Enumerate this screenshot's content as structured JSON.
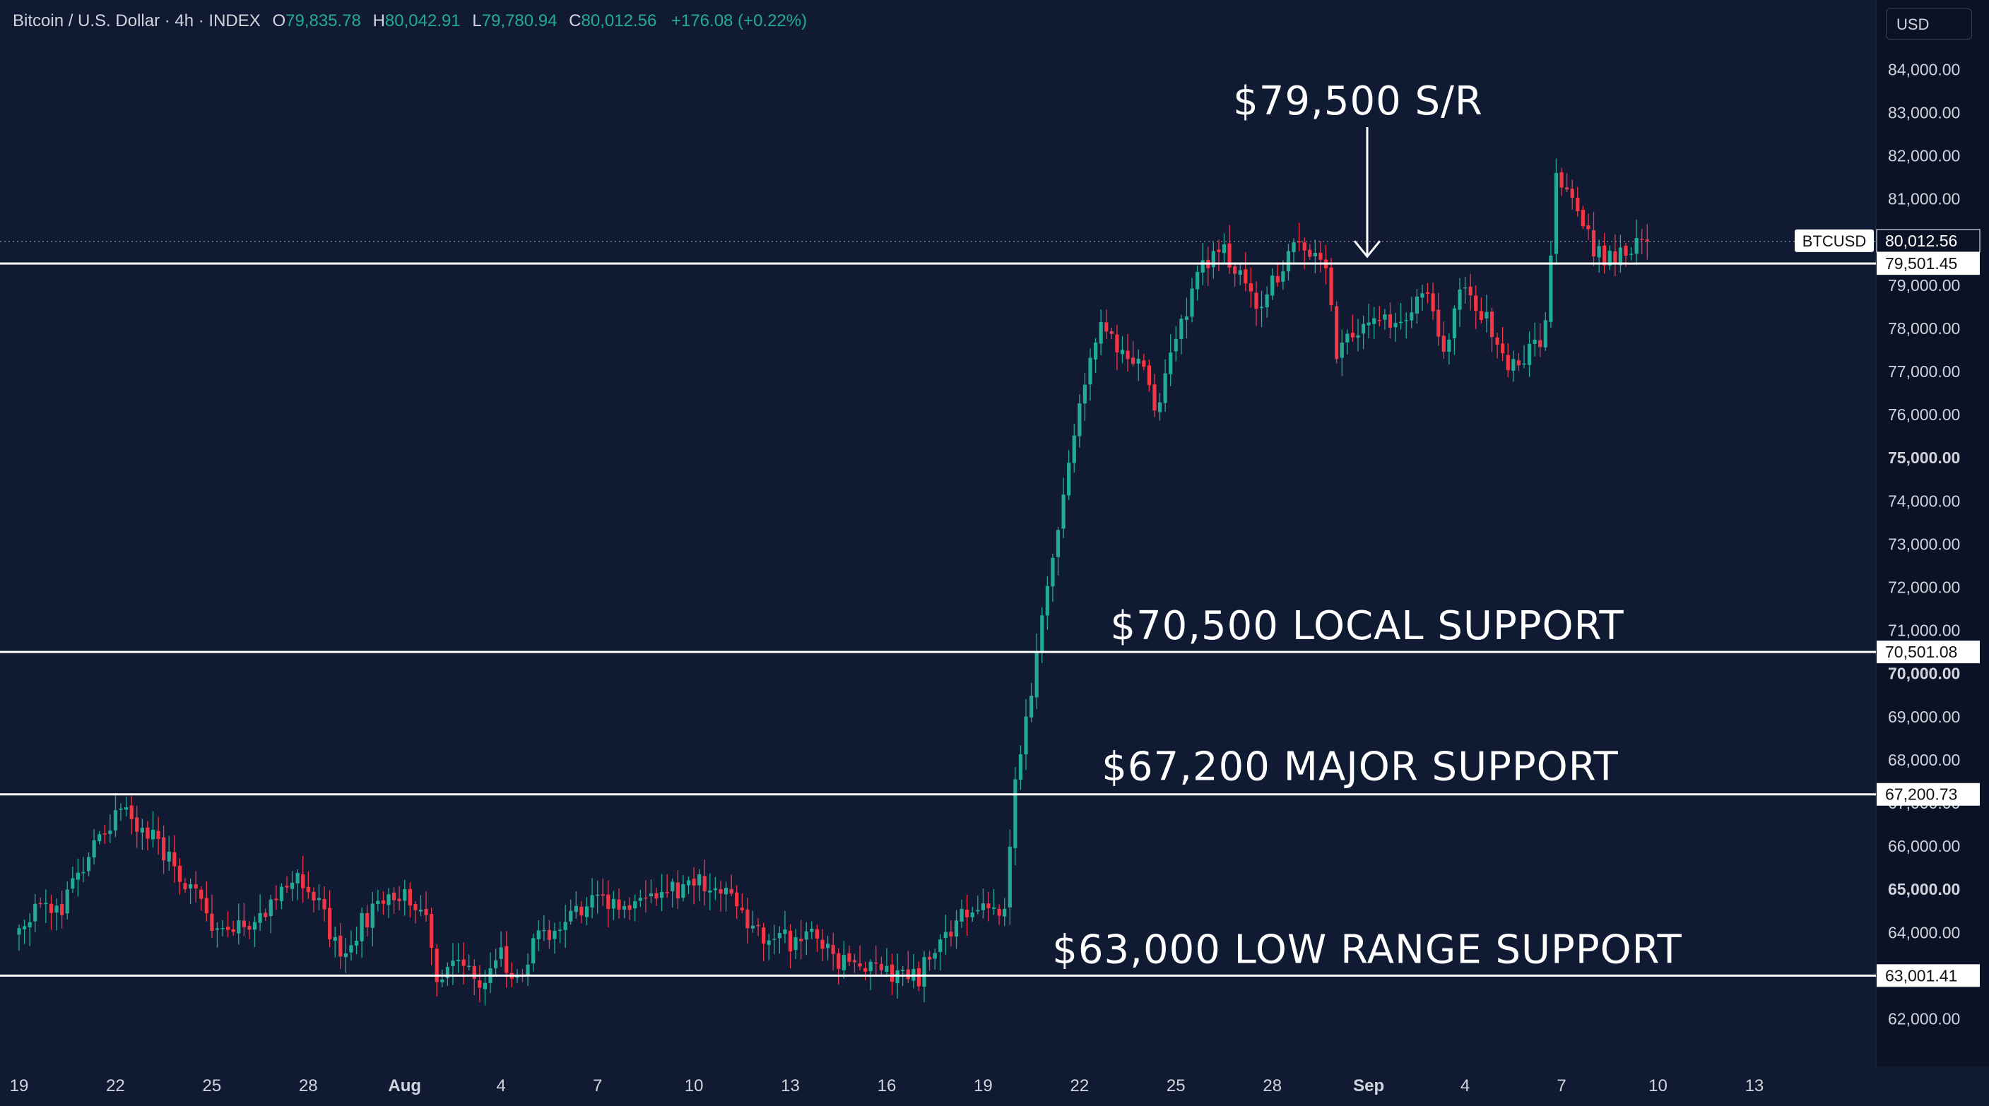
{
  "header": {
    "title": "Bitcoin / U.S. Dollar · 4h · INDEX",
    "o_label": "O",
    "o_value": "79,835.78",
    "h_label": "H",
    "h_value": "80,042.91",
    "l_label": "L",
    "l_value": "79,780.94",
    "c_label": "C",
    "c_value": "80,012.56",
    "change": "+176.08 (+0.22%)"
  },
  "currency_button": "USD",
  "colors": {
    "background": "#111a33",
    "up": "#22ab94",
    "down": "#f23645",
    "text": "#d1d4dc",
    "line": "#ffffff"
  },
  "chart_data": {
    "type": "candlestick",
    "title": "Bitcoin / U.S. Dollar · 4h · INDEX",
    "ylim": [
      61300,
      84900
    ],
    "y_ticks": [
      62000,
      63000,
      64000,
      65000,
      66000,
      67000,
      68000,
      69000,
      70000,
      71000,
      72000,
      73000,
      74000,
      75000,
      76000,
      77000,
      78000,
      79000,
      80000,
      81000,
      82000,
      83000,
      84000
    ],
    "y_tick_labels": [
      "62,000.00",
      "63,000.00",
      "64,000.00",
      "65,000.00",
      "66,000.00",
      "67,000.00",
      "68,000.00",
      "69,000.00",
      "70,000.00",
      "71,000.00",
      "72,000.00",
      "73,000.00",
      "74,000.00",
      "75,000.00",
      "76,000.00",
      "77,000.00",
      "78,000.00",
      "79,000.00",
      "80,000.00",
      "81,000.00",
      "82,000.00",
      "83,000.00",
      "84,000.00"
    ],
    "x_ticks": [
      "19",
      "22",
      "25",
      "28",
      "Aug",
      "4",
      "7",
      "10",
      "13",
      "16",
      "19",
      "22",
      "25",
      "28",
      "Sep",
      "4",
      "7",
      "10",
      "13"
    ],
    "x_tick_index": [
      0,
      18,
      36,
      54,
      72,
      90,
      108,
      126,
      144,
      162,
      180,
      198,
      216,
      234,
      252,
      270,
      288,
      306,
      324
    ],
    "bold_x_ticks": [
      "Aug",
      "Sep"
    ],
    "anchors": [
      [
        0,
        64100
      ],
      [
        4,
        64800
      ],
      [
        8,
        64600
      ],
      [
        12,
        65400
      ],
      [
        16,
        66500
      ],
      [
        20,
        66700
      ],
      [
        24,
        66300
      ],
      [
        28,
        65700
      ],
      [
        32,
        65100
      ],
      [
        36,
        64100
      ],
      [
        40,
        63900
      ],
      [
        44,
        64400
      ],
      [
        48,
        64700
      ],
      [
        52,
        65500
      ],
      [
        56,
        64600
      ],
      [
        60,
        63400
      ],
      [
        64,
        64200
      ],
      [
        68,
        64700
      ],
      [
        72,
        65000
      ],
      [
        76,
        64300
      ],
      [
        78,
        63000
      ],
      [
        82,
        63200
      ],
      [
        86,
        62900
      ],
      [
        90,
        63400
      ],
      [
        92,
        62800
      ],
      [
        96,
        63700
      ],
      [
        100,
        64100
      ],
      [
        104,
        64400
      ],
      [
        108,
        65000
      ],
      [
        112,
        64600
      ],
      [
        116,
        64700
      ],
      [
        120,
        65000
      ],
      [
        124,
        64900
      ],
      [
        128,
        65200
      ],
      [
        132,
        64800
      ],
      [
        136,
        64200
      ],
      [
        140,
        63900
      ],
      [
        144,
        63800
      ],
      [
        148,
        64000
      ],
      [
        152,
        63500
      ],
      [
        156,
        63100
      ],
      [
        160,
        63050
      ],
      [
        164,
        63100
      ],
      [
        168,
        63000
      ],
      [
        172,
        63800
      ],
      [
        176,
        64500
      ],
      [
        180,
        64800
      ],
      [
        184,
        64300
      ],
      [
        186,
        67500
      ],
      [
        188,
        68900
      ],
      [
        190,
        70300
      ],
      [
        192,
        72000
      ],
      [
        194,
        73200
      ],
      [
        196,
        75000
      ],
      [
        198,
        76400
      ],
      [
        200,
        77400
      ],
      [
        202,
        78000
      ],
      [
        206,
        77400
      ],
      [
        210,
        77100
      ],
      [
        212,
        76000
      ],
      [
        216,
        77600
      ],
      [
        220,
        79300
      ],
      [
        224,
        80000
      ],
      [
        228,
        79100
      ],
      [
        232,
        78500
      ],
      [
        236,
        79500
      ],
      [
        240,
        80000
      ],
      [
        244,
        79200
      ],
      [
        246,
        77500
      ],
      [
        250,
        77800
      ],
      [
        254,
        78200
      ],
      [
        258,
        78100
      ],
      [
        262,
        79000
      ],
      [
        266,
        77600
      ],
      [
        270,
        79000
      ],
      [
        274,
        78200
      ],
      [
        278,
        77100
      ],
      [
        282,
        77400
      ],
      [
        285,
        78000
      ],
      [
        287,
        81700
      ],
      [
        289,
        81000
      ],
      [
        292,
        80600
      ],
      [
        294,
        79700
      ],
      [
        298,
        79700
      ],
      [
        300,
        79800
      ],
      [
        304,
        80012.56
      ]
    ],
    "series": [
      {
        "name": "BTCUSD",
        "last_value": 80012.56,
        "label": "BTCUSD",
        "value_label": "80,012.56"
      }
    ],
    "horizontal_lines": [
      {
        "value": 79501.45,
        "value_label": "79,501.45",
        "annotation": "$79,500 S/R",
        "arrow": true
      },
      {
        "value": 70501.08,
        "value_label": "70,501.08",
        "annotation": "$70,500 LOCAL SUPPORT"
      },
      {
        "value": 67200.73,
        "value_label": "67,200.73",
        "annotation": "$67,200 MAJOR SUPPORT"
      },
      {
        "value": 63001.41,
        "value_label": "63,001.41",
        "annotation": "$63,000 LOW RANGE SUPPORT"
      }
    ],
    "grid": false
  }
}
